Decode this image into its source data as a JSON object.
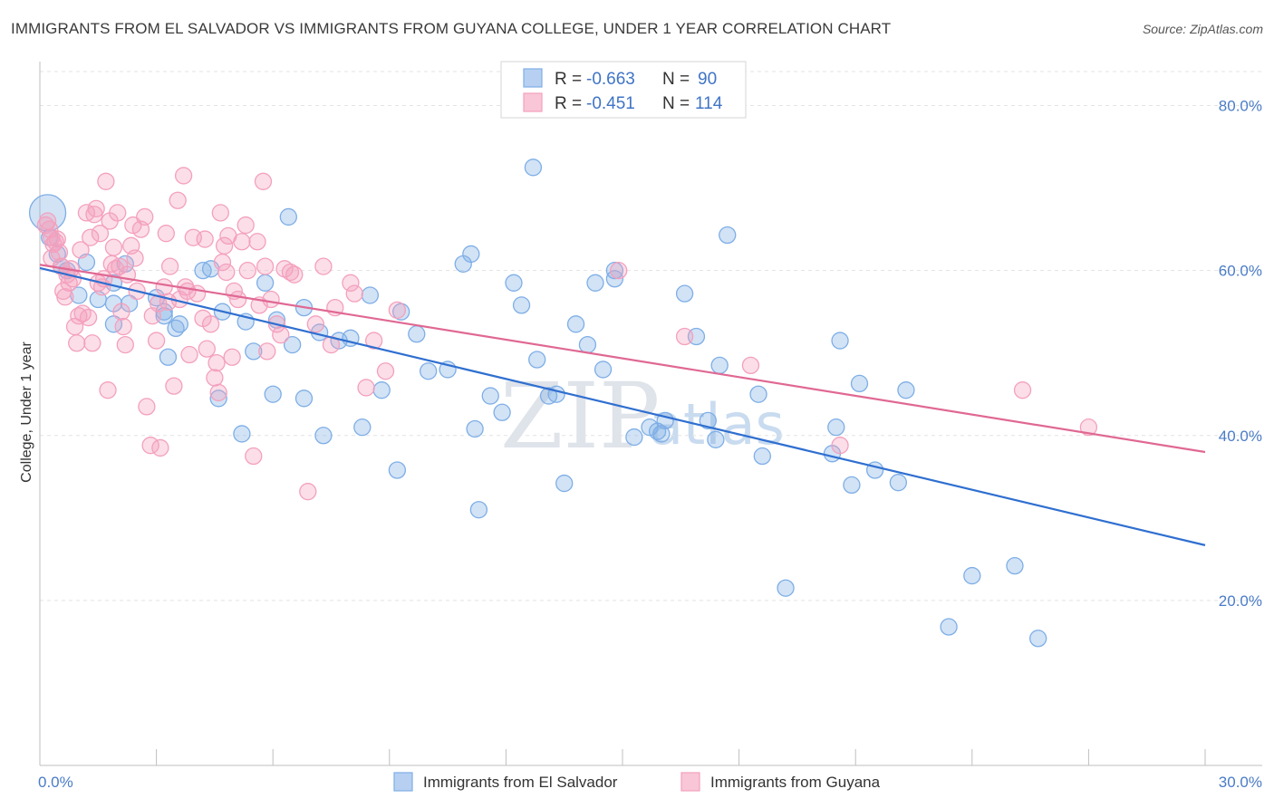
{
  "title": "IMMIGRANTS FROM EL SALVADOR VS IMMIGRANTS FROM GUYANA COLLEGE, UNDER 1 YEAR CORRELATION CHART",
  "source": "Source: ZipAtlas.com",
  "watermark": {
    "zip": "ZIP",
    "atlas": "atlas"
  },
  "legend": {
    "rows": [
      {
        "r_label": "R =",
        "r_value": "-0.663",
        "n_label": "N =",
        "n_value": "90"
      },
      {
        "r_label": "R =",
        "r_value": "-0.451",
        "n_label": "N =",
        "n_value": "114"
      }
    ]
  },
  "chart_data": {
    "type": "scatter",
    "title": "IMMIGRANTS FROM EL SALVADOR VS IMMIGRANTS FROM GUYANA COLLEGE, UNDER 1 YEAR CORRELATION CHART",
    "xlabel": "",
    "ylabel": "College, Under 1 year",
    "xlim": [
      0,
      30
    ],
    "ylim": [
      0,
      85
    ],
    "x_tick_labels": [
      "0.0%",
      "30.0%"
    ],
    "y_ticks": [
      20,
      40,
      60,
      80
    ],
    "y_tick_labels": [
      "20.0%",
      "40.0%",
      "60.0%",
      "80.0%"
    ],
    "grid": true,
    "legend_position": "top-center",
    "series": [
      {
        "name": "Immigrants from El Salvador",
        "color": "#7eaee6",
        "line_color": "#2f6fd0",
        "trend": {
          "x": [
            0,
            30
          ],
          "y": [
            60.3,
            26.7
          ]
        },
        "points": [
          [
            0.2,
            67.0
          ],
          [
            0.25,
            64.0
          ],
          [
            0.45,
            62.0
          ],
          [
            0.55,
            60.5
          ],
          [
            0.7,
            60.0
          ],
          [
            1.2,
            61.0
          ],
          [
            1.0,
            57.0
          ],
          [
            1.5,
            56.5
          ],
          [
            1.9,
            56.0
          ],
          [
            1.9,
            58.5
          ],
          [
            1.9,
            53.5
          ],
          [
            2.2,
            60.8
          ],
          [
            2.3,
            56.0
          ],
          [
            3.0,
            56.7
          ],
          [
            3.2,
            55.0
          ],
          [
            3.5,
            53.0
          ],
          [
            3.6,
            53.5
          ],
          [
            3.2,
            54.5
          ],
          [
            3.3,
            49.5
          ],
          [
            4.2,
            60.0
          ],
          [
            4.4,
            60.2
          ],
          [
            4.7,
            55.0
          ],
          [
            4.6,
            44.5
          ],
          [
            5.2,
            40.2
          ],
          [
            5.3,
            53.8
          ],
          [
            5.5,
            50.2
          ],
          [
            5.8,
            58.5
          ],
          [
            6.1,
            54.0
          ],
          [
            6.0,
            45.0
          ],
          [
            6.5,
            51.0
          ],
          [
            6.4,
            66.5
          ],
          [
            6.8,
            55.5
          ],
          [
            6.8,
            44.5
          ],
          [
            7.2,
            52.5
          ],
          [
            7.3,
            40.0
          ],
          [
            7.7,
            51.5
          ],
          [
            8.0,
            51.8
          ],
          [
            8.3,
            41.0
          ],
          [
            8.5,
            57.0
          ],
          [
            8.8,
            45.5
          ],
          [
            9.2,
            35.8
          ],
          [
            9.3,
            55.0
          ],
          [
            9.7,
            52.3
          ],
          [
            10.0,
            47.8
          ],
          [
            10.5,
            48.0
          ],
          [
            10.9,
            60.8
          ],
          [
            11.1,
            62.0
          ],
          [
            11.2,
            40.8
          ],
          [
            11.3,
            31.0
          ],
          [
            11.6,
            44.8
          ],
          [
            11.9,
            42.8
          ],
          [
            12.2,
            58.5
          ],
          [
            12.4,
            55.8
          ],
          [
            12.7,
            72.5
          ],
          [
            12.8,
            49.2
          ],
          [
            13.1,
            44.8
          ],
          [
            13.3,
            45.0
          ],
          [
            13.5,
            34.2
          ],
          [
            13.8,
            53.5
          ],
          [
            14.1,
            51.0
          ],
          [
            14.3,
            58.5
          ],
          [
            14.5,
            48.0
          ],
          [
            14.8,
            59.0
          ],
          [
            14.8,
            60.0
          ],
          [
            15.3,
            39.8
          ],
          [
            15.7,
            41.0
          ],
          [
            15.9,
            40.5
          ],
          [
            16.1,
            41.8
          ],
          [
            16.0,
            40.2
          ],
          [
            16.6,
            57.2
          ],
          [
            16.9,
            52.0
          ],
          [
            17.2,
            41.8
          ],
          [
            17.4,
            39.5
          ],
          [
            17.5,
            48.5
          ],
          [
            17.7,
            64.3
          ],
          [
            18.5,
            45.0
          ],
          [
            18.6,
            37.5
          ],
          [
            19.2,
            21.5
          ],
          [
            20.4,
            37.8
          ],
          [
            20.5,
            41.0
          ],
          [
            20.6,
            51.5
          ],
          [
            20.9,
            34.0
          ],
          [
            21.1,
            46.3
          ],
          [
            21.5,
            35.8
          ],
          [
            22.1,
            34.3
          ],
          [
            22.3,
            45.5
          ],
          [
            23.4,
            16.8
          ],
          [
            24.0,
            23.0
          ],
          [
            25.1,
            24.2
          ],
          [
            25.7,
            15.4
          ]
        ]
      },
      {
        "name": "Immigrants from Guyana",
        "color": "#f4a0bd",
        "line_color": "#e06893",
        "trend": {
          "x": [
            0,
            30
          ],
          "y": [
            60.7,
            38.0
          ]
        },
        "points": [
          [
            0.15,
            65.5
          ],
          [
            0.2,
            66.0
          ],
          [
            0.25,
            65.0
          ],
          [
            0.3,
            64.0
          ],
          [
            0.3,
            61.5
          ],
          [
            0.35,
            63.2
          ],
          [
            0.4,
            63.5
          ],
          [
            0.45,
            63.8
          ],
          [
            0.5,
            62.2
          ],
          [
            0.55,
            60.5
          ],
          [
            0.6,
            57.5
          ],
          [
            0.65,
            56.8
          ],
          [
            0.7,
            59.5
          ],
          [
            0.75,
            58.5
          ],
          [
            0.8,
            60.2
          ],
          [
            0.85,
            59.0
          ],
          [
            0.9,
            53.2
          ],
          [
            0.95,
            51.2
          ],
          [
            1.0,
            54.5
          ],
          [
            1.05,
            62.5
          ],
          [
            1.1,
            54.8
          ],
          [
            1.2,
            67.0
          ],
          [
            1.25,
            54.3
          ],
          [
            1.3,
            64.0
          ],
          [
            1.35,
            51.2
          ],
          [
            1.4,
            66.8
          ],
          [
            1.45,
            67.5
          ],
          [
            1.5,
            58.5
          ],
          [
            1.55,
            64.5
          ],
          [
            1.6,
            58.0
          ],
          [
            1.65,
            59.0
          ],
          [
            1.7,
            70.8
          ],
          [
            1.75,
            45.5
          ],
          [
            1.8,
            66.0
          ],
          [
            1.85,
            60.8
          ],
          [
            1.9,
            62.8
          ],
          [
            1.95,
            60.2
          ],
          [
            2.0,
            67.0
          ],
          [
            2.05,
            60.5
          ],
          [
            2.1,
            55.0
          ],
          [
            2.15,
            53.2
          ],
          [
            2.2,
            51.0
          ],
          [
            2.25,
            59.5
          ],
          [
            2.35,
            63.0
          ],
          [
            2.4,
            65.5
          ],
          [
            2.45,
            61.5
          ],
          [
            2.5,
            57.5
          ],
          [
            2.6,
            65.0
          ],
          [
            2.7,
            66.5
          ],
          [
            2.75,
            43.5
          ],
          [
            2.85,
            38.8
          ],
          [
            2.9,
            54.5
          ],
          [
            3.0,
            51.5
          ],
          [
            3.05,
            56.0
          ],
          [
            3.1,
            38.5
          ],
          [
            3.2,
            58.0
          ],
          [
            3.25,
            64.5
          ],
          [
            3.3,
            56.2
          ],
          [
            3.35,
            60.5
          ],
          [
            3.45,
            46.0
          ],
          [
            3.55,
            68.5
          ],
          [
            3.6,
            56.5
          ],
          [
            3.7,
            71.5
          ],
          [
            3.75,
            58.0
          ],
          [
            3.8,
            57.5
          ],
          [
            3.85,
            49.8
          ],
          [
            3.95,
            64.0
          ],
          [
            4.05,
            57.2
          ],
          [
            4.2,
            54.2
          ],
          [
            4.25,
            63.8
          ],
          [
            4.3,
            50.5
          ],
          [
            4.4,
            53.5
          ],
          [
            4.5,
            47.0
          ],
          [
            4.55,
            48.8
          ],
          [
            4.6,
            45.2
          ],
          [
            4.65,
            67.0
          ],
          [
            4.7,
            61.0
          ],
          [
            4.75,
            63.0
          ],
          [
            4.8,
            59.8
          ],
          [
            4.85,
            64.2
          ],
          [
            4.95,
            49.5
          ],
          [
            5.0,
            57.5
          ],
          [
            5.1,
            56.5
          ],
          [
            5.2,
            63.5
          ],
          [
            5.3,
            65.5
          ],
          [
            5.35,
            60.0
          ],
          [
            5.5,
            37.5
          ],
          [
            5.6,
            63.5
          ],
          [
            5.65,
            55.8
          ],
          [
            5.75,
            70.8
          ],
          [
            5.8,
            60.5
          ],
          [
            5.85,
            50.2
          ],
          [
            5.95,
            56.5
          ],
          [
            6.1,
            53.5
          ],
          [
            6.2,
            52.2
          ],
          [
            6.3,
            60.2
          ],
          [
            6.45,
            59.8
          ],
          [
            6.55,
            59.5
          ],
          [
            6.9,
            33.2
          ],
          [
            7.1,
            53.5
          ],
          [
            7.3,
            60.5
          ],
          [
            7.5,
            51.0
          ],
          [
            7.6,
            55.5
          ],
          [
            8.0,
            58.5
          ],
          [
            8.1,
            57.2
          ],
          [
            8.4,
            45.8
          ],
          [
            8.6,
            51.5
          ],
          [
            8.9,
            47.8
          ],
          [
            9.2,
            55.2
          ],
          [
            14.9,
            60.0
          ],
          [
            16.6,
            52.0
          ],
          [
            18.3,
            48.5
          ],
          [
            20.6,
            38.8
          ],
          [
            25.3,
            45.5
          ],
          [
            27.0,
            41.0
          ]
        ]
      }
    ]
  },
  "bottom_legend": {
    "items": [
      {
        "label": "Immigrants from El Salvador"
      },
      {
        "label": "Immigrants from Guyana"
      }
    ]
  }
}
